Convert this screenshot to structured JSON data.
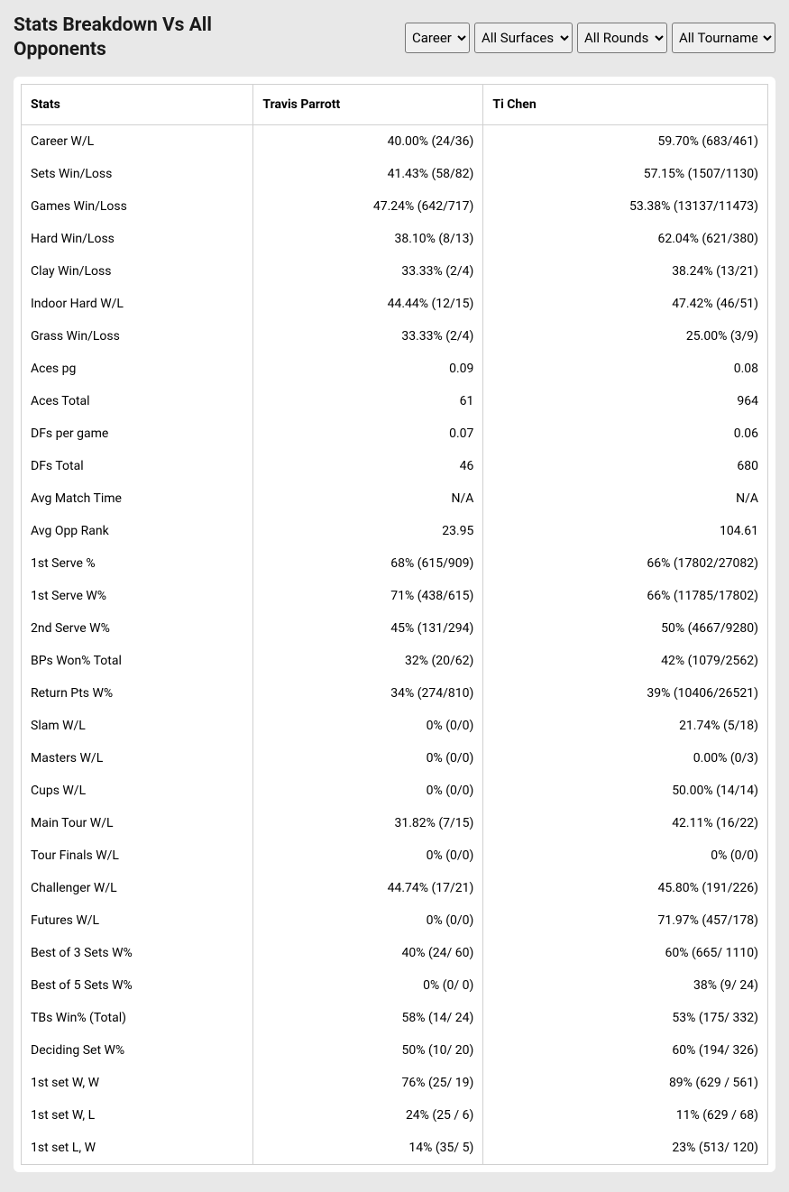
{
  "header": {
    "title": "Stats Breakdown Vs All Opponents",
    "filters": {
      "time": "Career",
      "surface": "All Surfaces",
      "rounds": "All Rounds",
      "tournament": "All Tournaments"
    }
  },
  "table": {
    "columns": {
      "stats": "Stats",
      "player1": "Travis Parrott",
      "player2": "Ti Chen"
    },
    "rows": [
      {
        "label": "Career W/L",
        "p1": "40.00% (24/36)",
        "p2": "59.70% (683/461)"
      },
      {
        "label": "Sets Win/Loss",
        "p1": "41.43% (58/82)",
        "p2": "57.15% (1507/1130)"
      },
      {
        "label": "Games Win/Loss",
        "p1": "47.24% (642/717)",
        "p2": "53.38% (13137/11473)"
      },
      {
        "label": "Hard Win/Loss",
        "p1": "38.10% (8/13)",
        "p2": "62.04% (621/380)"
      },
      {
        "label": "Clay Win/Loss",
        "p1": "33.33% (2/4)",
        "p2": "38.24% (13/21)"
      },
      {
        "label": "Indoor Hard W/L",
        "p1": "44.44% (12/15)",
        "p2": "47.42% (46/51)"
      },
      {
        "label": "Grass Win/Loss",
        "p1": "33.33% (2/4)",
        "p2": "25.00% (3/9)"
      },
      {
        "label": "Aces pg",
        "p1": "0.09",
        "p2": "0.08"
      },
      {
        "label": "Aces Total",
        "p1": "61",
        "p2": "964"
      },
      {
        "label": "DFs per game",
        "p1": "0.07",
        "p2": "0.06"
      },
      {
        "label": "DFs Total",
        "p1": "46",
        "p2": "680"
      },
      {
        "label": "Avg Match Time",
        "p1": "N/A",
        "p2": "N/A"
      },
      {
        "label": "Avg Opp Rank",
        "p1": "23.95",
        "p2": "104.61"
      },
      {
        "label": "1st Serve %",
        "p1": "68% (615/909)",
        "p2": "66% (17802/27082)"
      },
      {
        "label": "1st Serve W%",
        "p1": "71% (438/615)",
        "p2": "66% (11785/17802)"
      },
      {
        "label": "2nd Serve W%",
        "p1": "45% (131/294)",
        "p2": "50% (4667/9280)"
      },
      {
        "label": "BPs Won% Total",
        "p1": "32% (20/62)",
        "p2": "42% (1079/2562)"
      },
      {
        "label": "Return Pts W%",
        "p1": "34% (274/810)",
        "p2": "39% (10406/26521)"
      },
      {
        "label": "Slam W/L",
        "p1": "0% (0/0)",
        "p2": "21.74% (5/18)"
      },
      {
        "label": "Masters W/L",
        "p1": "0% (0/0)",
        "p2": "0.00% (0/3)"
      },
      {
        "label": "Cups W/L",
        "p1": "0% (0/0)",
        "p2": "50.00% (14/14)"
      },
      {
        "label": "Main Tour W/L",
        "p1": "31.82% (7/15)",
        "p2": "42.11% (16/22)"
      },
      {
        "label": "Tour Finals W/L",
        "p1": "0% (0/0)",
        "p2": "0% (0/0)"
      },
      {
        "label": "Challenger W/L",
        "p1": "44.74% (17/21)",
        "p2": "45.80% (191/226)"
      },
      {
        "label": "Futures W/L",
        "p1": "0% (0/0)",
        "p2": "71.97% (457/178)"
      },
      {
        "label": "Best of 3 Sets W%",
        "p1": "40% (24/ 60)",
        "p2": "60% (665/ 1110)"
      },
      {
        "label": "Best of 5 Sets W%",
        "p1": "0% (0/ 0)",
        "p2": "38% (9/ 24)"
      },
      {
        "label": "TBs Win% (Total)",
        "p1": "58% (14/ 24)",
        "p2": "53% (175/ 332)"
      },
      {
        "label": "Deciding Set W%",
        "p1": "50% (10/ 20)",
        "p2": "60% (194/ 326)"
      },
      {
        "label": "1st set W, W",
        "p1": "76% (25/ 19)",
        "p2": "89% (629 / 561)"
      },
      {
        "label": "1st set W, L",
        "p1": "24% (25 / 6)",
        "p2": "11% (629 / 68)"
      },
      {
        "label": "1st set L, W",
        "p1": "14% (35/ 5)",
        "p2": "23% (513/ 120)"
      }
    ]
  }
}
